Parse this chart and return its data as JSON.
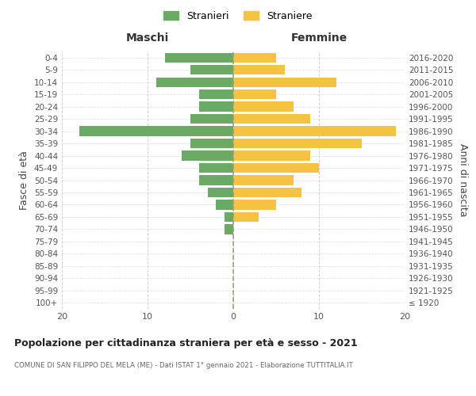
{
  "age_groups": [
    "100+",
    "95-99",
    "90-94",
    "85-89",
    "80-84",
    "75-79",
    "70-74",
    "65-69",
    "60-64",
    "55-59",
    "50-54",
    "45-49",
    "40-44",
    "35-39",
    "30-34",
    "25-29",
    "20-24",
    "15-19",
    "10-14",
    "5-9",
    "0-4"
  ],
  "birth_years": [
    "≤ 1920",
    "1921-1925",
    "1926-1930",
    "1931-1935",
    "1936-1940",
    "1941-1945",
    "1946-1950",
    "1951-1955",
    "1956-1960",
    "1961-1965",
    "1966-1970",
    "1971-1975",
    "1976-1980",
    "1981-1985",
    "1986-1990",
    "1991-1995",
    "1996-2000",
    "2001-2005",
    "2006-2010",
    "2011-2015",
    "2016-2020"
  ],
  "maschi": [
    0,
    0,
    0,
    0,
    0,
    0,
    1,
    1,
    2,
    3,
    4,
    4,
    6,
    5,
    18,
    5,
    4,
    4,
    9,
    5,
    8
  ],
  "femmine": [
    0,
    0,
    0,
    0,
    0,
    0,
    0,
    3,
    5,
    8,
    7,
    10,
    9,
    15,
    19,
    9,
    7,
    5,
    12,
    6,
    5
  ],
  "maschi_color": "#6aaa64",
  "femmine_color": "#f5c242",
  "background_color": "#ffffff",
  "grid_color": "#cccccc",
  "title": "Popolazione per cittadinanza straniera per età e sesso - 2021",
  "subtitle": "COMUNE DI SAN FILIPPO DEL MELA (ME) - Dati ISTAT 1° gennaio 2021 - Elaborazione TUTTITALIA.IT",
  "ylabel_left": "Fasce di età",
  "ylabel_right": "Anni di nascita",
  "xlabel_left": "Maschi",
  "xlabel_right": "Femmine",
  "legend_maschi": "Stranieri",
  "legend_femmine": "Straniere",
  "xlim": 20,
  "bar_height": 0.8
}
